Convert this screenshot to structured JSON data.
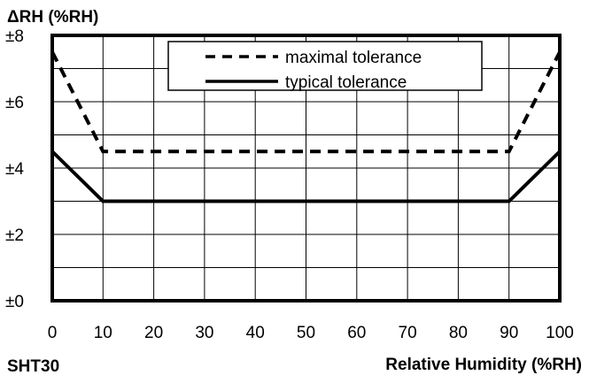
{
  "chart_data": {
    "type": "line",
    "ylabel": "ΔRH (%RH)",
    "xlabel": "Relative Humidity (%RH)",
    "product_label": "SHT30",
    "xlim": [
      0,
      100
    ],
    "ylim": [
      0,
      8
    ],
    "x_ticks": [
      0,
      10,
      20,
      30,
      40,
      50,
      60,
      70,
      80,
      90,
      100
    ],
    "x_tick_labels": [
      "0",
      "10",
      "20",
      "30",
      "40",
      "50",
      "60",
      "70",
      "80",
      "90",
      "100"
    ],
    "y_ticks": [
      0,
      2,
      4,
      6,
      8
    ],
    "y_tick_labels": [
      "±0",
      "±2",
      "±4",
      "±6",
      "±8"
    ],
    "grid": true,
    "legend_position": "top-center",
    "series": [
      {
        "name": "maximal tolerance",
        "style": "dashed",
        "color": "#000000",
        "x": [
          0,
          10,
          90,
          100
        ],
        "y": [
          7.5,
          4.5,
          4.5,
          7.5
        ]
      },
      {
        "name": "typical tolerance",
        "style": "solid",
        "color": "#000000",
        "x": [
          0,
          10,
          90,
          100
        ],
        "y": [
          4.5,
          3.0,
          3.0,
          4.5
        ]
      }
    ]
  }
}
